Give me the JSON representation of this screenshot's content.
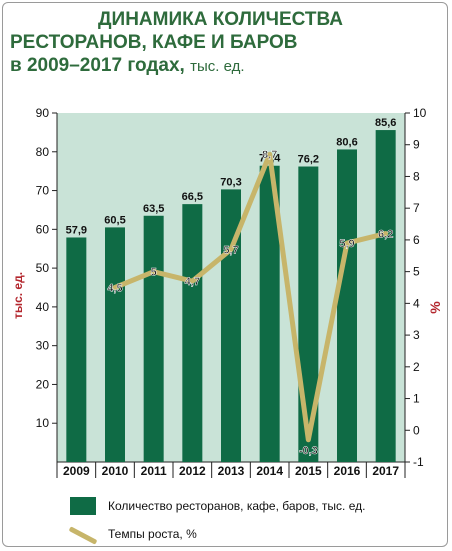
{
  "title": {
    "line1": "ДИНАМИКА КОЛИЧЕСТВА",
    "line2": "РЕСТОРАНОВ, КАФЕ И БАРОВ",
    "line3": "в 2009–2017 годах,",
    "unit": "тыс. ед."
  },
  "chart_data": {
    "type": "bar",
    "categories": [
      "2009",
      "2010",
      "2011",
      "2012",
      "2013",
      "2014",
      "2015",
      "2016",
      "2017"
    ],
    "ylabel": "тыс. ед.",
    "ylim": [
      0,
      90
    ],
    "yticks": [
      "10",
      "20",
      "30",
      "40",
      "50",
      "60",
      "70",
      "80",
      "90"
    ],
    "y2label": "%",
    "y2lim": [
      -1,
      10
    ],
    "y2ticks": [
      "-1",
      "0",
      "1",
      "2",
      "3",
      "4",
      "5",
      "6",
      "7",
      "8",
      "9",
      "10"
    ],
    "series": [
      {
        "name": "Количество ресторанов, кафе, баров, тыс. ед.",
        "type": "bar",
        "axis": "left",
        "values": [
          57.9,
          60.5,
          63.5,
          66.5,
          70.3,
          76.4,
          76.2,
          80.6,
          85.6
        ],
        "labels": [
          "57,9",
          "60,5",
          "63,5",
          "66,5",
          "70,3",
          "76,4",
          "76,2",
          "80,6",
          "85,6"
        ]
      },
      {
        "name": "Темпы роста, %",
        "type": "line",
        "axis": "right",
        "values": [
          null,
          4.5,
          5,
          4.7,
          5.7,
          8.7,
          -0.3,
          5.9,
          6.2
        ],
        "labels": [
          "",
          "4,5",
          "5",
          "4,7",
          "5,7",
          "8,7",
          "-0,3",
          "5,9",
          "6,2"
        ]
      }
    ],
    "grid": false,
    "legend": "bottom",
    "colors": {
      "bar": "#0f6b45",
      "line": "#c7b56a",
      "plot_bg": "#c9e3d7",
      "axis_label": "#b3262d"
    }
  }
}
